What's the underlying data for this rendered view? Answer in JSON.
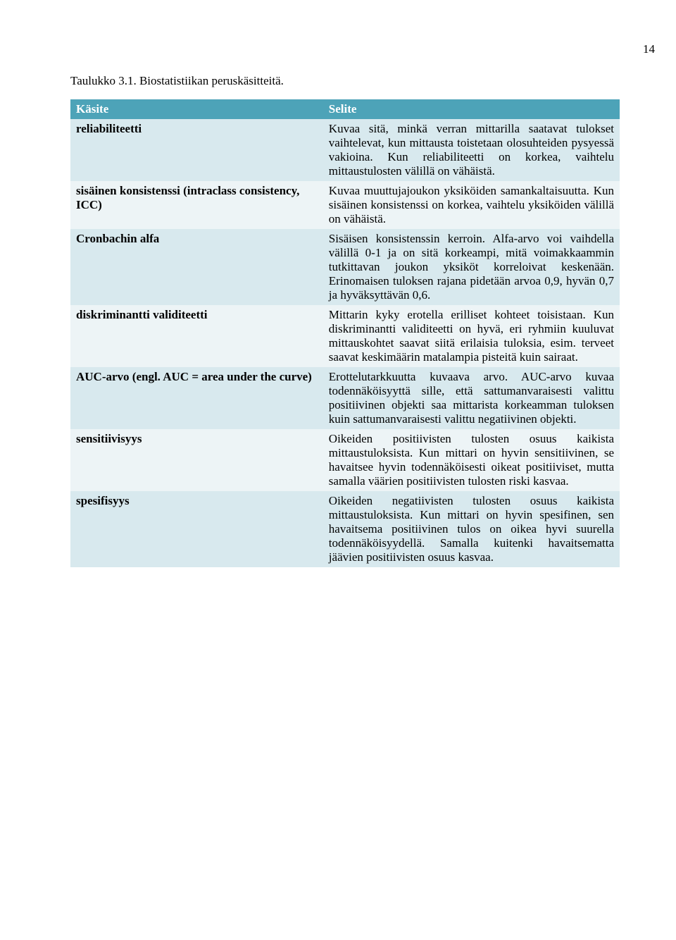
{
  "page_number": "14",
  "caption": "Taulukko 3.1. Biostatistiikan peruskäsitteitä.",
  "header": {
    "term_label": "Käsite",
    "definition_label": "Selite"
  },
  "rows": [
    {
      "term": "reliabiliteetti",
      "definition": "Kuvaa sitä, minkä verran mittarilla saatavat tulokset vaihtelevat, kun mittausta toistetaan olosuhteiden pysyessä vakioina. Kun reliabiliteetti on korkea, vaihtelu mittaustulosten välillä on vähäistä."
    },
    {
      "term": "sisäinen konsistenssi (intraclass consistency, ICC)",
      "definition": "Kuvaa muuttujajoukon yksiköiden samankaltaisuutta. Kun sisäinen konsistenssi on korkea, vaihtelu yksiköiden välillä on vähäistä."
    },
    {
      "term": "Cronbachin alfa",
      "definition": "Sisäisen konsistenssin kerroin. Alfa-arvo voi vaihdella välillä 0-1 ja on sitä korkeampi, mitä voimakkaammin tutkittavan joukon yksiköt korreloivat keskenään. Erinomaisen tuloksen rajana pidetään arvoa 0,9, hyvän 0,7 ja hyväksyttävän 0,6."
    },
    {
      "term": "diskriminantti validiteetti",
      "definition": "Mittarin kyky erotella erilliset kohteet toisistaan. Kun diskriminantti validiteetti on hyvä, eri ryhmiin kuuluvat mittauskohtet saavat siitä erilaisia tuloksia, esim. terveet saavat keskimäärin matalampia pisteitä kuin sairaat."
    },
    {
      "term": "AUC-arvo (engl. AUC = area under the curve)",
      "definition": "Erottelutarkkuutta kuvaava arvo. AUC-arvo kuvaa todennäköisyyttä sille, että sattumanvaraisesti valittu positiivinen objekti saa mittarista korkeamman tuloksen kuin sattumanvaraisesti valittu negatiivinen objekti."
    },
    {
      "term": "sensitiivisyys",
      "definition": "Oikeiden positiivisten tulosten osuus kaikista mittaustuloksista. Kun mittari on hyvin sensitiivinen, se havaitsee hyvin todennäköisesti oikeat positiiviset, mutta samalla väärien positiivisten tulosten riski kasvaa."
    },
    {
      "term": "spesifisyys",
      "definition": "Oikeiden negatiivisten tulosten osuus kaikista mittaustuloksista. Kun mittari on hyvin spesifinen, sen havaitsema positiivinen tulos on oikea hyvi suurella todennäköisyydellä. Samalla kuitenki havaitsematta jäävien positiivisten osuus kasvaa."
    }
  ],
  "colors": {
    "header_bg": "#4da3b8",
    "band_a": "#d8e9ee",
    "band_b": "#edf4f6"
  }
}
